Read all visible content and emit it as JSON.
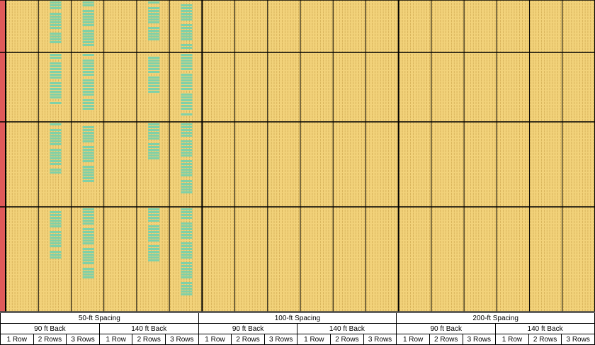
{
  "chart_data": {
    "type": "heatmap",
    "title": "",
    "xlabel": "",
    "ylabel": "",
    "colors": {
      "background": "#f2d27a",
      "cell": "#efc96a",
      "cell_line": "#c9a24a",
      "highlight": "#7fd1a8",
      "edge": "#e05a5a",
      "block_border": "#000000"
    },
    "grid": {
      "row_blocks": 4,
      "column_blocks": 18
    },
    "spacings": [
      {
        "label": "50-ft Spacing",
        "backs": [
          {
            "label": "90 ft Back",
            "rows": [
              "1 Row",
              "2 Rows",
              "3 Rows"
            ]
          },
          {
            "label": "140 ft Back",
            "rows": [
              "1 Row",
              "2 Rows",
              "3 Rows"
            ]
          }
        ]
      },
      {
        "label": "100-ft Spacing",
        "backs": [
          {
            "label": "90 ft Back",
            "rows": [
              "1 Row",
              "2 Rows",
              "3 Rows"
            ]
          },
          {
            "label": "140 ft Back",
            "rows": [
              "1 Row",
              "2 Rows",
              "3 Rows"
            ]
          }
        ]
      },
      {
        "label": "200-ft Spacing",
        "backs": [
          {
            "label": "90 ft Back",
            "rows": [
              "1 Row",
              "2 Rows",
              "3 Rows"
            ]
          },
          {
            "label": "140 ft Back",
            "rows": [
              "1 Row",
              "2 Rows",
              "3 Rows"
            ]
          }
        ]
      }
    ],
    "highlight_fraction": {
      "description_columns": [
        "50-ft 90 ft Back 2 Rows",
        "50-ft 90 ft Back 3 Rows",
        "50-ft 140 ft Back 2 Rows",
        "50-ft 140 ft Back 3 Rows"
      ],
      "by_row_block": [
        [
          0.85,
          0.9,
          0.8,
          0.95
        ],
        [
          0.75,
          0.85,
          0.6,
          0.9
        ],
        [
          0.6,
          0.75,
          0.45,
          0.85
        ],
        [
          0.5,
          0.7,
          0.55,
          0.85
        ]
      ]
    }
  }
}
